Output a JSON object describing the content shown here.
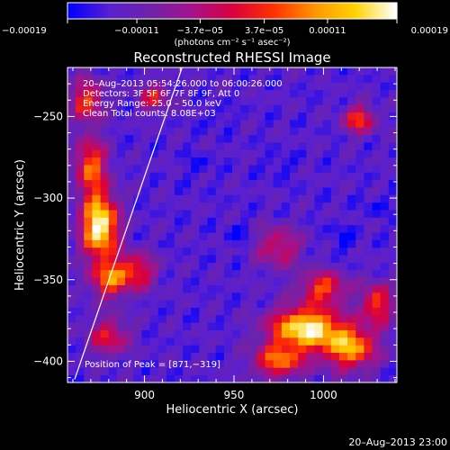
{
  "chart_data": {
    "type": "heatmap",
    "title": "Reconstructed RHESSI Image",
    "xlabel": "Heliocentric X (arcsec)",
    "ylabel": "Heliocentric Y (arcsec)",
    "xlim": [
      857,
      1041
    ],
    "ylim": [
      -413,
      -220
    ],
    "x_ticks": [
      900,
      950,
      1000
    ],
    "y_ticks": [
      -250,
      -300,
      -350,
      -400
    ],
    "x_tick_labels": [
      "900",
      "950",
      "1000"
    ],
    "y_tick_labels": [
      "−250",
      "−300",
      "−350",
      "−400"
    ],
    "colorbar": {
      "range": [
        -0.00019,
        0.00019
      ],
      "ticks": [
        -0.00019,
        -0.00011,
        -3.7e-05,
        3.7e-05,
        0.00011,
        0.00019
      ],
      "tick_labels": [
        "−0.00019",
        "−0.00011",
        "−3.7e−05",
        "3.7e−05",
        "0.00011",
        "0.00019"
      ],
      "units_label": "(photons cm⁻² s⁻¹ asec⁻²)",
      "colormap": [
        "#0000ff",
        "#5a1fd0",
        "#6e22a8",
        "#a4128c",
        "#d8003c",
        "#ff3000",
        "#ff9400",
        "#ffd300",
        "#ffffff"
      ]
    },
    "annotations": [
      "20–Aug–2013 05:54:26.000 to 06:00:26.000",
      "Detectors: 3F 5F 6F 7F 8F 9F, Att 0",
      "Energy Range: 25.0 – 50.0 keV",
      "Clean    Total counts: 8.08E+03"
    ],
    "peak_label": "Position of Peak = [871,−319]",
    "peak_position": [
      871,
      -319
    ],
    "limb_line": [
      [
        861,
        -411
      ],
      [
        921,
        -220
      ]
    ],
    "sources": [
      {
        "x": 875,
        "y": -317,
        "sx": 7,
        "sy": 14,
        "amp": 0.9
      },
      {
        "x": 870,
        "y": -280,
        "sx": 6,
        "sy": 12,
        "amp": 0.55
      },
      {
        "x": 868,
        "y": -240,
        "sx": 6,
        "sy": 9,
        "amp": 0.5
      },
      {
        "x": 880,
        "y": -350,
        "sx": 7,
        "sy": 8,
        "amp": 0.5
      },
      {
        "x": 895,
        "y": -345,
        "sx": 8,
        "sy": 8,
        "amp": 0.45
      },
      {
        "x": 880,
        "y": -385,
        "sx": 8,
        "sy": 8,
        "amp": 0.4
      },
      {
        "x": 990,
        "y": -380,
        "sx": 14,
        "sy": 9,
        "amp": 0.85
      },
      {
        "x": 1015,
        "y": -392,
        "sx": 10,
        "sy": 9,
        "amp": 0.65
      },
      {
        "x": 975,
        "y": -400,
        "sx": 10,
        "sy": 7,
        "amp": 0.55
      },
      {
        "x": 1000,
        "y": -355,
        "sx": 9,
        "sy": 7,
        "amp": 0.5
      },
      {
        "x": 1030,
        "y": -365,
        "sx": 6,
        "sy": 9,
        "amp": 0.5
      },
      {
        "x": 975,
        "y": -330,
        "sx": 9,
        "sy": 9,
        "amp": 0.35
      },
      {
        "x": 1020,
        "y": -252,
        "sx": 6,
        "sy": 6,
        "amp": 0.5
      },
      {
        "x": 905,
        "y": -238,
        "sx": 6,
        "sy": 6,
        "amp": 0.4
      }
    ],
    "negative_spots": [
      {
        "x": 952,
        "y": -323,
        "sx": 4,
        "sy": 5,
        "amp": 0.7
      },
      {
        "x": 1010,
        "y": -325,
        "sx": 5,
        "sy": 6,
        "amp": 0.6
      },
      {
        "x": 975,
        "y": -280,
        "sx": 5,
        "sy": 5,
        "amp": 0.5
      },
      {
        "x": 930,
        "y": -280,
        "sx": 5,
        "sy": 5,
        "amp": 0.45
      },
      {
        "x": 1030,
        "y": -305,
        "sx": 5,
        "sy": 5,
        "amp": 0.45
      },
      {
        "x": 940,
        "y": -250,
        "sx": 5,
        "sy": 5,
        "amp": 0.4
      }
    ]
  },
  "footer_date": "20–Aug–2013 23:00"
}
